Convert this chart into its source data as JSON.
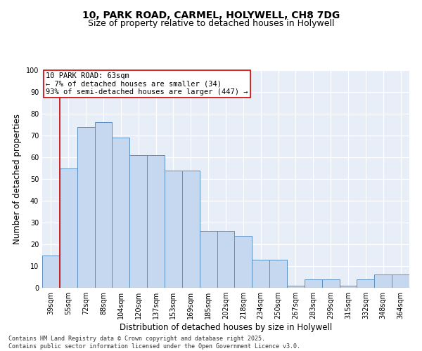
{
  "title_line1": "10, PARK ROAD, CARMEL, HOLYWELL, CH8 7DG",
  "title_line2": "Size of property relative to detached houses in Holywell",
  "xlabel": "Distribution of detached houses by size in Holywell",
  "ylabel": "Number of detached properties",
  "categories": [
    "39sqm",
    "55sqm",
    "72sqm",
    "88sqm",
    "104sqm",
    "120sqm",
    "137sqm",
    "153sqm",
    "169sqm",
    "185sqm",
    "202sqm",
    "218sqm",
    "234sqm",
    "250sqm",
    "267sqm",
    "283sqm",
    "299sqm",
    "315sqm",
    "332sqm",
    "348sqm",
    "364sqm"
  ],
  "bar_values": [
    15,
    55,
    74,
    76,
    69,
    61,
    61,
    54,
    54,
    26,
    26,
    24,
    13,
    13,
    1,
    4,
    4,
    1,
    4,
    6,
    6
  ],
  "bar_color": "#c5d8f0",
  "bar_edge_color": "#5a8fc0",
  "vline_color": "#cc0000",
  "annotation_text": "10 PARK ROAD: 63sqm\n← 7% of detached houses are smaller (34)\n93% of semi-detached houses are larger (447) →",
  "annotation_box_color": "#cc0000",
  "ylim": [
    0,
    100
  ],
  "yticks": [
    0,
    10,
    20,
    30,
    40,
    50,
    60,
    70,
    80,
    90,
    100
  ],
  "background_color": "#e8eef8",
  "grid_color": "#ffffff",
  "footer": "Contains HM Land Registry data © Crown copyright and database right 2025.\nContains public sector information licensed under the Open Government Licence v3.0.",
  "title_fontsize": 10,
  "subtitle_fontsize": 9,
  "axis_label_fontsize": 8.5,
  "tick_fontsize": 7,
  "annotation_fontsize": 7.5,
  "footer_fontsize": 6
}
